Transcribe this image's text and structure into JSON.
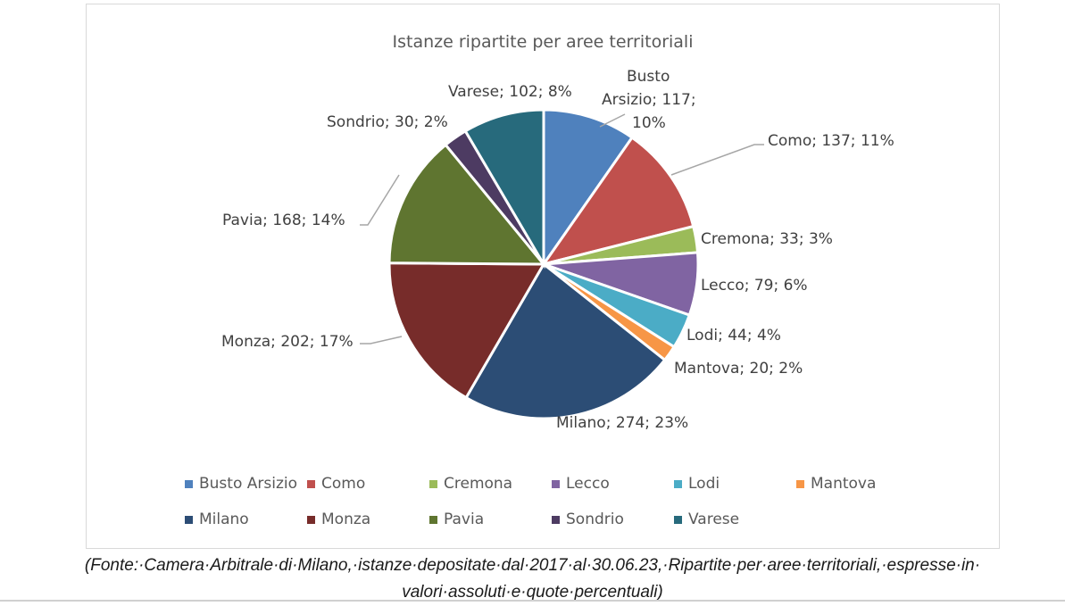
{
  "chart_data": {
    "type": "pie",
    "title": "Istanze ripartite per aree territoriali",
    "categories": [
      "Busto Arsizio",
      "Como",
      "Cremona",
      "Lecco",
      "Lodi",
      "Mantova",
      "Milano",
      "Monza",
      "Pavia",
      "Sondrio",
      "Varese"
    ],
    "values": [
      117,
      137,
      33,
      79,
      44,
      20,
      274,
      202,
      168,
      30,
      102
    ],
    "percentages": [
      "10%",
      "11%",
      "3%",
      "6%",
      "4%",
      "2%",
      "23%",
      "17%",
      "14%",
      "2%",
      "8%"
    ],
    "colors": [
      "#4F81BD",
      "#C0504D",
      "#9BBB59",
      "#8064A2",
      "#4BACC6",
      "#F79646",
      "#2C4D75",
      "#772C2A",
      "#5F7530",
      "#4D3B62",
      "#276A7C"
    ],
    "data_labels": [
      "Busto Arsizio; 117; 10%",
      "Como; 137; 11%",
      "Cremona; 33; 3%",
      "Lecco; 79; 6%",
      "Lodi; 44; 4%",
      "Mantova; 20; 2%",
      "Milano; 274; 23%",
      "Monza; 202; 17%",
      "Pavia; 168; 14%",
      "Sondrio; 30; 2%",
      "Varese; 102; 8%"
    ],
    "legend_position": "bottom"
  },
  "labels": {
    "busto_l1": "Busto",
    "busto_l2": "Arsizio; 117;",
    "busto_l3": "10%",
    "como": "Como; 137; 11%",
    "cremona": "Cremona; 33; 3%",
    "lecco": "Lecco; 79; 6%",
    "lodi": "Lodi; 44; 4%",
    "mantova": "Mantova; 20; 2%",
    "milano": "Milano; 274; 23%",
    "monza": "Monza; 202; 17%",
    "pavia": "Pavia; 168; 14%",
    "sondrio": "Sondrio; 30; 2%",
    "varese": "Varese; 102; 8%"
  },
  "legend": [
    {
      "label": "Busto Arsizio",
      "color": "#4F81BD"
    },
    {
      "label": "Como",
      "color": "#C0504D"
    },
    {
      "label": "Cremona",
      "color": "#9BBB59"
    },
    {
      "label": "Lecco",
      "color": "#8064A2"
    },
    {
      "label": "Lodi",
      "color": "#4BACC6"
    },
    {
      "label": "Mantova",
      "color": "#F79646"
    },
    {
      "label": "Milano",
      "color": "#2C4D75"
    },
    {
      "label": "Monza",
      "color": "#772C2A"
    },
    {
      "label": "Pavia",
      "color": "#5F7530"
    },
    {
      "label": "Sondrio",
      "color": "#4D3B62"
    },
    {
      "label": "Varese",
      "color": "#276A7C"
    }
  ],
  "caption": {
    "line1": "(Fonte:·Camera·Arbitrale·di·Milano,·istanze·depositate·dal·2017·al·30.06.23,·Ripartite·per·aree·territoriali,·espresse·in·",
    "line2": "valori·assoluti·e·quote·percentuali)"
  }
}
